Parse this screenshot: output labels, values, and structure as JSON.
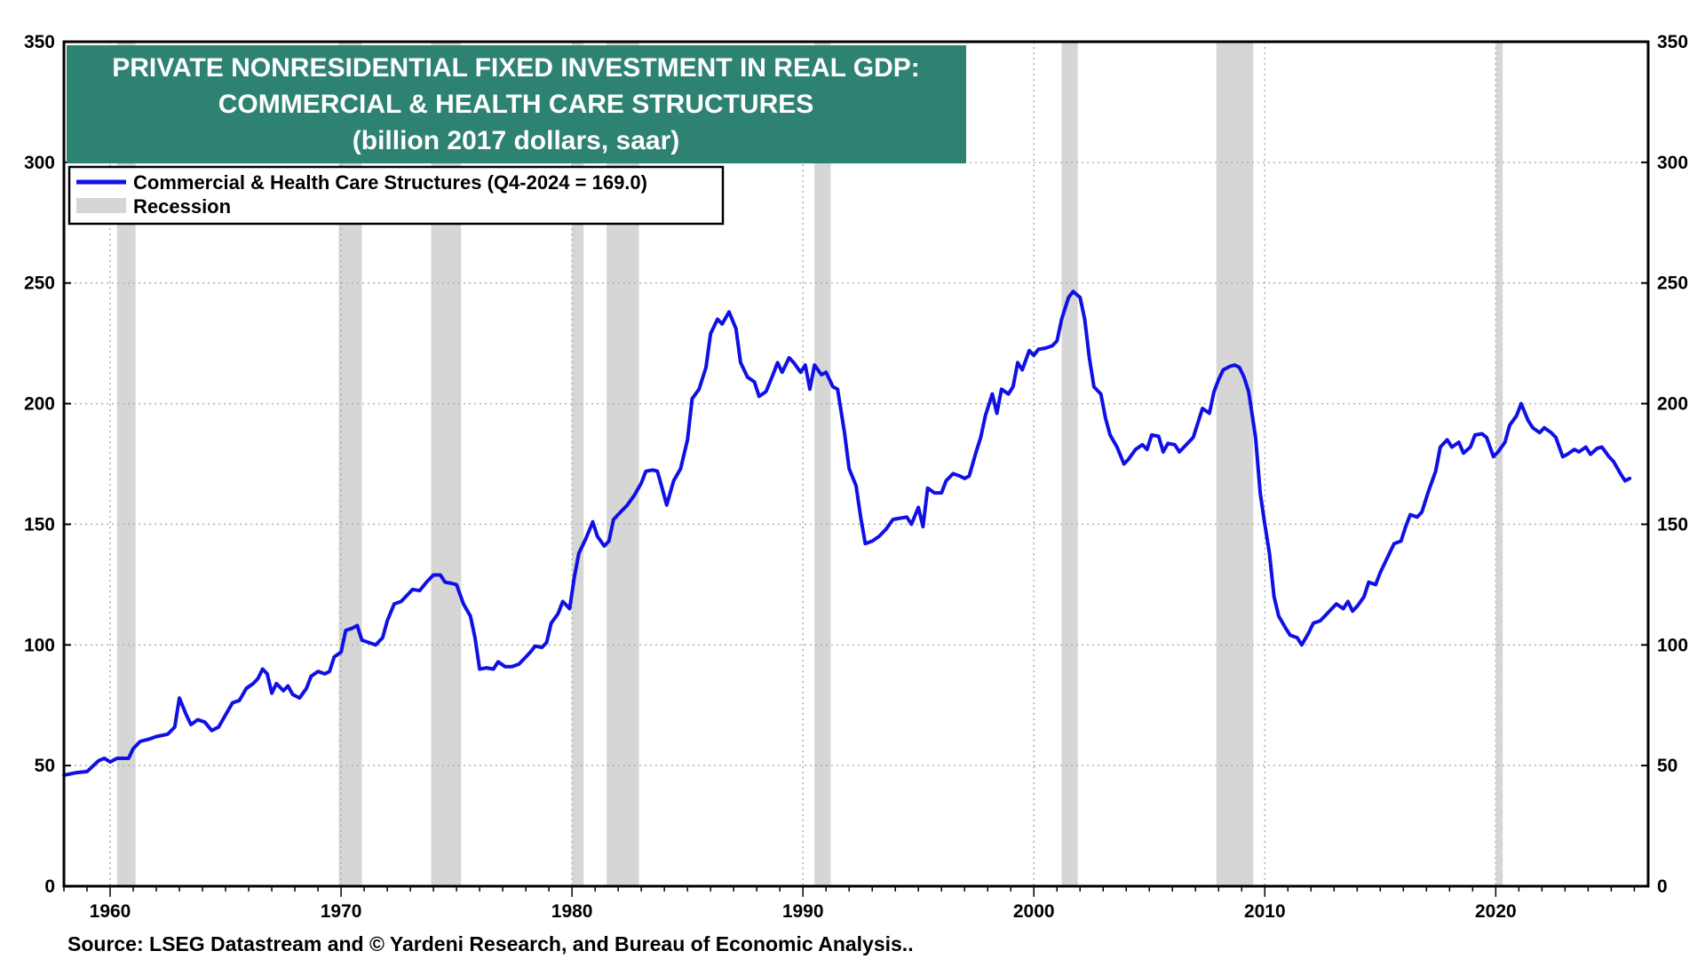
{
  "chart_data": {
    "type": "line",
    "title_lines": [
      "PRIVATE NONRESIDENTIAL FIXED INVESTMENT IN REAL GDP:",
      "COMMERCIAL & HEALTH CARE STRUCTURES",
      "(billion 2017 dollars, saar)"
    ],
    "source": "Source: LSEG Datastream and © Yardeni Research, and Bureau of Economic Analysis..",
    "ylim": [
      0,
      350
    ],
    "xlim": [
      1958.0,
      2026.6
    ],
    "y_ticks": [
      0,
      50,
      100,
      150,
      200,
      250,
      300,
      350
    ],
    "x_ticks": [
      1960,
      1970,
      1980,
      1990,
      2000,
      2010,
      2020
    ],
    "grid": true,
    "legend": {
      "placement": "top-left",
      "series_label": "Commercial & Health Care Structures  (Q4-2024 = 169.0)",
      "recession_label": "Recession"
    },
    "colors": {
      "series": "#1010e6",
      "recession": "#d6d6d6",
      "title_bg": "#2e8272",
      "grid": "#b0b0b0"
    },
    "recessions": [
      [
        1960.3,
        1961.1
      ],
      [
        1969.9,
        1970.9
      ],
      [
        1973.9,
        1975.2
      ],
      [
        1980.0,
        1980.5
      ],
      [
        1981.5,
        1982.9
      ],
      [
        1990.5,
        1991.2
      ],
      [
        2001.2,
        2001.9
      ],
      [
        2007.9,
        2009.5
      ],
      [
        2020.0,
        2020.3
      ]
    ],
    "series": [
      {
        "name": "Commercial & Health Care Structures",
        "points": [
          [
            1958.0,
            46
          ],
          [
            1958.5,
            47
          ],
          [
            1959.0,
            47.5
          ],
          [
            1959.5,
            52
          ],
          [
            1959.75,
            53
          ],
          [
            1960.0,
            51.5
          ],
          [
            1960.3,
            53
          ],
          [
            1960.8,
            53
          ],
          [
            1961.0,
            57
          ],
          [
            1961.3,
            60
          ],
          [
            1961.7,
            61
          ],
          [
            1962.0,
            62
          ],
          [
            1962.5,
            63
          ],
          [
            1962.8,
            66
          ],
          [
            1963.0,
            78
          ],
          [
            1963.3,
            71
          ],
          [
            1963.5,
            67
          ],
          [
            1963.8,
            69
          ],
          [
            1964.1,
            68
          ],
          [
            1964.4,
            64.5
          ],
          [
            1964.7,
            66
          ],
          [
            1965.0,
            71
          ],
          [
            1965.3,
            76
          ],
          [
            1965.6,
            77
          ],
          [
            1965.9,
            82
          ],
          [
            1966.2,
            84
          ],
          [
            1966.4,
            86
          ],
          [
            1966.6,
            90
          ],
          [
            1966.8,
            88
          ],
          [
            1967.0,
            80
          ],
          [
            1967.2,
            84
          ],
          [
            1967.5,
            81
          ],
          [
            1967.7,
            83
          ],
          [
            1967.9,
            79.5
          ],
          [
            1968.2,
            78
          ],
          [
            1968.5,
            82
          ],
          [
            1968.7,
            87
          ],
          [
            1969.0,
            89
          ],
          [
            1969.3,
            88
          ],
          [
            1969.5,
            89
          ],
          [
            1969.7,
            95
          ],
          [
            1970.0,
            97
          ],
          [
            1970.2,
            106
          ],
          [
            1970.5,
            107
          ],
          [
            1970.7,
            108
          ],
          [
            1970.9,
            102
          ],
          [
            1971.2,
            101
          ],
          [
            1971.5,
            100
          ],
          [
            1971.8,
            103
          ],
          [
            1972.0,
            110
          ],
          [
            1972.3,
            117
          ],
          [
            1972.6,
            118
          ],
          [
            1972.9,
            121
          ],
          [
            1973.1,
            123
          ],
          [
            1973.4,
            122.5
          ],
          [
            1973.7,
            126
          ],
          [
            1974.0,
            129
          ],
          [
            1974.3,
            129
          ],
          [
            1974.5,
            126
          ],
          [
            1974.8,
            125.5
          ],
          [
            1975.0,
            125
          ],
          [
            1975.3,
            117
          ],
          [
            1975.6,
            112
          ],
          [
            1975.8,
            103
          ],
          [
            1976.0,
            90
          ],
          [
            1976.3,
            90.5
          ],
          [
            1976.6,
            90
          ],
          [
            1976.8,
            93
          ],
          [
            1977.1,
            91
          ],
          [
            1977.4,
            91
          ],
          [
            1977.7,
            92
          ],
          [
            1978.0,
            95
          ],
          [
            1978.2,
            97
          ],
          [
            1978.4,
            99.5
          ],
          [
            1978.7,
            99
          ],
          [
            1978.9,
            101
          ],
          [
            1979.1,
            109
          ],
          [
            1979.4,
            113
          ],
          [
            1979.6,
            118
          ],
          [
            1979.9,
            115
          ],
          [
            1980.1,
            128
          ],
          [
            1980.3,
            138
          ],
          [
            1980.6,
            144
          ],
          [
            1980.9,
            151
          ],
          [
            1981.1,
            145
          ],
          [
            1981.4,
            141
          ],
          [
            1981.6,
            143
          ],
          [
            1981.8,
            152
          ],
          [
            1982.1,
            155
          ],
          [
            1982.4,
            158
          ],
          [
            1982.7,
            162
          ],
          [
            1983.0,
            167
          ],
          [
            1983.2,
            172
          ],
          [
            1983.5,
            172.5
          ],
          [
            1983.7,
            172
          ],
          [
            1983.9,
            165
          ],
          [
            1984.1,
            158
          ],
          [
            1984.4,
            168
          ],
          [
            1984.7,
            173
          ],
          [
            1985.0,
            185
          ],
          [
            1985.2,
            202
          ],
          [
            1985.5,
            206
          ],
          [
            1985.8,
            215
          ],
          [
            1986.0,
            229
          ],
          [
            1986.3,
            235
          ],
          [
            1986.5,
            233
          ],
          [
            1986.8,
            238
          ],
          [
            1987.1,
            231
          ],
          [
            1987.3,
            217
          ],
          [
            1987.6,
            211
          ],
          [
            1987.9,
            209
          ],
          [
            1988.1,
            203
          ],
          [
            1988.4,
            205
          ],
          [
            1988.7,
            212
          ],
          [
            1988.9,
            217
          ],
          [
            1989.1,
            213
          ],
          [
            1989.4,
            219
          ],
          [
            1989.6,
            217
          ],
          [
            1989.9,
            213
          ],
          [
            1990.1,
            216
          ],
          [
            1990.3,
            206
          ],
          [
            1990.5,
            216
          ],
          [
            1990.8,
            212
          ],
          [
            1991.0,
            213
          ],
          [
            1991.3,
            207
          ],
          [
            1991.5,
            206
          ],
          [
            1991.8,
            188
          ],
          [
            1992.0,
            173
          ],
          [
            1992.3,
            166
          ],
          [
            1992.5,
            153
          ],
          [
            1992.7,
            142
          ],
          [
            1993.0,
            143
          ],
          [
            1993.3,
            145
          ],
          [
            1993.6,
            148
          ],
          [
            1993.9,
            152
          ],
          [
            1994.2,
            152.5
          ],
          [
            1994.5,
            153
          ],
          [
            1994.7,
            150
          ],
          [
            1995.0,
            157
          ],
          [
            1995.2,
            149
          ],
          [
            1995.4,
            165
          ],
          [
            1995.7,
            163
          ],
          [
            1996.0,
            163
          ],
          [
            1996.2,
            168
          ],
          [
            1996.5,
            171
          ],
          [
            1996.8,
            170
          ],
          [
            1997.0,
            169
          ],
          [
            1997.2,
            170
          ],
          [
            1997.5,
            180
          ],
          [
            1997.7,
            186
          ],
          [
            1997.9,
            195
          ],
          [
            1998.2,
            204
          ],
          [
            1998.4,
            196
          ],
          [
            1998.6,
            206
          ],
          [
            1998.9,
            204
          ],
          [
            1999.1,
            207
          ],
          [
            1999.3,
            217
          ],
          [
            1999.5,
            214
          ],
          [
            1999.8,
            222
          ],
          [
            2000.0,
            220
          ],
          [
            2000.2,
            222.5
          ],
          [
            2000.5,
            223
          ],
          [
            2000.8,
            224
          ],
          [
            2001.0,
            226
          ],
          [
            2001.2,
            235
          ],
          [
            2001.5,
            244
          ],
          [
            2001.7,
            246.5
          ],
          [
            2002.0,
            244
          ],
          [
            2002.2,
            235
          ],
          [
            2002.4,
            219
          ],
          [
            2002.6,
            207
          ],
          [
            2002.9,
            204
          ],
          [
            2003.1,
            194
          ],
          [
            2003.3,
            187
          ],
          [
            2003.6,
            182
          ],
          [
            2003.9,
            175
          ],
          [
            2004.1,
            177
          ],
          [
            2004.4,
            181
          ],
          [
            2004.7,
            183
          ],
          [
            2004.9,
            181
          ],
          [
            2005.1,
            187
          ],
          [
            2005.4,
            186.5
          ],
          [
            2005.6,
            180
          ],
          [
            2005.8,
            183.5
          ],
          [
            2006.1,
            183
          ],
          [
            2006.3,
            180
          ],
          [
            2006.6,
            183
          ],
          [
            2006.9,
            186
          ],
          [
            2007.1,
            192
          ],
          [
            2007.3,
            198
          ],
          [
            2007.6,
            196
          ],
          [
            2007.8,
            205
          ],
          [
            2008.0,
            210
          ],
          [
            2008.2,
            214
          ],
          [
            2008.5,
            215.5
          ],
          [
            2008.7,
            216
          ],
          [
            2008.9,
            215
          ],
          [
            2009.1,
            211
          ],
          [
            2009.3,
            205
          ],
          [
            2009.6,
            186
          ],
          [
            2009.8,
            163
          ],
          [
            2010.0,
            150
          ],
          [
            2010.2,
            138
          ],
          [
            2010.4,
            120
          ],
          [
            2010.6,
            112
          ],
          [
            2010.9,
            107
          ],
          [
            2011.1,
            104
          ],
          [
            2011.4,
            103
          ],
          [
            2011.6,
            100
          ],
          [
            2011.9,
            105
          ],
          [
            2012.1,
            109
          ],
          [
            2012.4,
            110
          ],
          [
            2012.6,
            112
          ],
          [
            2012.9,
            115
          ],
          [
            2013.1,
            117
          ],
          [
            2013.4,
            115
          ],
          [
            2013.6,
            118
          ],
          [
            2013.8,
            114
          ],
          [
            2014.0,
            116
          ],
          [
            2014.3,
            120
          ],
          [
            2014.5,
            126
          ],
          [
            2014.8,
            125
          ],
          [
            2015.0,
            130
          ],
          [
            2015.3,
            136
          ],
          [
            2015.6,
            142
          ],
          [
            2015.9,
            143
          ],
          [
            2016.1,
            149
          ],
          [
            2016.3,
            154
          ],
          [
            2016.6,
            153
          ],
          [
            2016.8,
            155
          ],
          [
            2017.1,
            164
          ],
          [
            2017.4,
            172
          ],
          [
            2017.6,
            182
          ],
          [
            2017.9,
            185
          ],
          [
            2018.1,
            182
          ],
          [
            2018.4,
            184
          ],
          [
            2018.6,
            179.5
          ],
          [
            2018.9,
            182
          ],
          [
            2019.1,
            187
          ],
          [
            2019.4,
            187.5
          ],
          [
            2019.6,
            186
          ],
          [
            2019.9,
            178
          ],
          [
            2020.1,
            180
          ],
          [
            2020.4,
            184
          ],
          [
            2020.6,
            191
          ],
          [
            2020.9,
            195
          ],
          [
            2021.1,
            200
          ],
          [
            2021.4,
            193
          ],
          [
            2021.6,
            190
          ],
          [
            2021.9,
            188
          ],
          [
            2022.1,
            190
          ],
          [
            2022.4,
            188
          ],
          [
            2022.6,
            186
          ],
          [
            2022.9,
            178
          ],
          [
            2023.1,
            179
          ],
          [
            2023.4,
            181
          ],
          [
            2023.6,
            180
          ],
          [
            2023.9,
            182
          ],
          [
            2024.1,
            179
          ],
          [
            2024.4,
            181.5
          ],
          [
            2024.6,
            182
          ],
          [
            2024.9,
            178
          ],
          [
            2025.1,
            176
          ],
          [
            2025.4,
            171
          ],
          [
            2025.6,
            168
          ],
          [
            2025.8,
            169
          ]
        ]
      }
    ]
  }
}
